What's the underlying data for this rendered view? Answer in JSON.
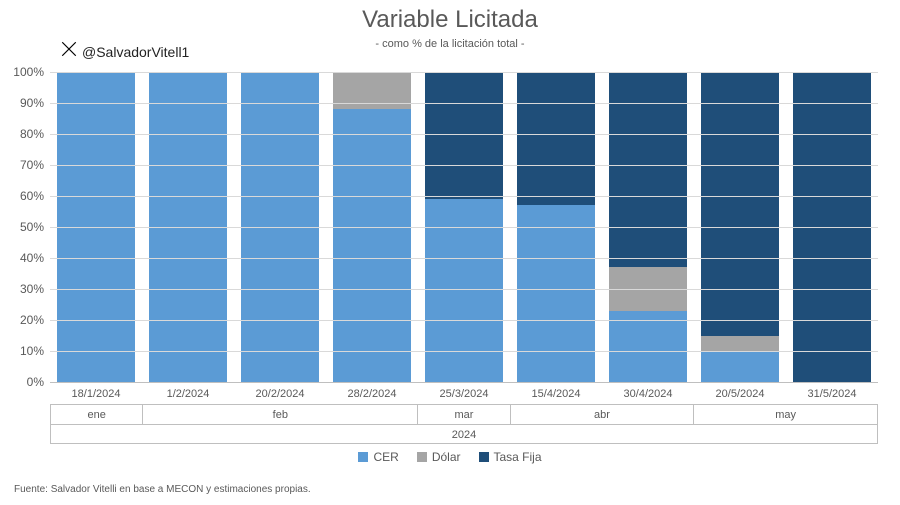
{
  "chart": {
    "type": "stacked-bar-100",
    "title": "Variable Licitada",
    "subtitle": "- como % de la licitación total -",
    "handle": "@SalvadorVitell1",
    "source_note": "Fuente: Salvador Vitelli en base a MECON y estimaciones propias.",
    "year_label": "2024",
    "background_color": "#ffffff",
    "grid_color": "#d9d9d9",
    "axis_color": "#bfbfbf",
    "text_color": "#595959",
    "title_fontsize": 24,
    "subtitle_fontsize": 11,
    "label_fontsize": 12,
    "tick_fontsize": 11,
    "source_fontsize": 10,
    "ylim": [
      0,
      100
    ],
    "ytick_step": 10,
    "y_suffix": "%",
    "bar_width_pct": 84,
    "series": [
      {
        "key": "cer",
        "label": "CER",
        "color": "#5b9bd5"
      },
      {
        "key": "dolar",
        "label": "Dólar",
        "color": "#a5a5a5"
      },
      {
        "key": "tasafija",
        "label": "Tasa Fija",
        "color": "#1f4e79"
      }
    ],
    "x": [
      {
        "date": "18/1/2024",
        "month": "ene"
      },
      {
        "date": "1/2/2024",
        "month": "feb"
      },
      {
        "date": "20/2/2024",
        "month": "feb"
      },
      {
        "date": "28/2/2024",
        "month": "feb"
      },
      {
        "date": "25/3/2024",
        "month": "mar"
      },
      {
        "date": "15/4/2024",
        "month": "abr"
      },
      {
        "date": "30/4/2024",
        "month": "abr"
      },
      {
        "date": "20/5/2024",
        "month": "may"
      },
      {
        "date": "31/5/2024",
        "month": "may"
      }
    ],
    "month_groups": [
      {
        "label": "ene",
        "span": 1
      },
      {
        "label": "feb",
        "span": 3
      },
      {
        "label": "mar",
        "span": 1
      },
      {
        "label": "abr",
        "span": 2
      },
      {
        "label": "may",
        "span": 2
      }
    ],
    "data": {
      "cer": [
        100,
        100,
        100,
        88,
        59,
        57,
        23,
        10,
        0
      ],
      "dolar": [
        0,
        0,
        0,
        12,
        0,
        0,
        14,
        5,
        0
      ],
      "tasafija": [
        0,
        0,
        0,
        0,
        41,
        43,
        63,
        85,
        100
      ]
    }
  }
}
